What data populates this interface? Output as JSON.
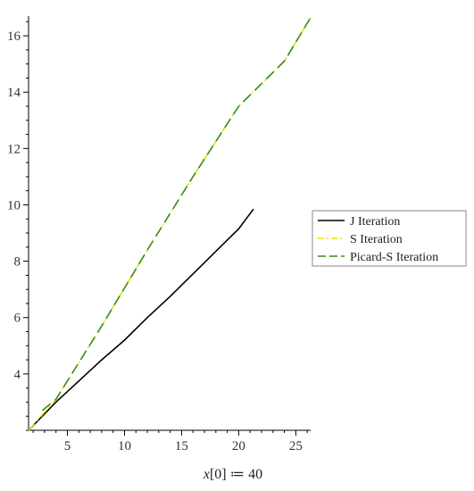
{
  "chart_data": {
    "type": "line",
    "title": "",
    "xlabel": "x[0] ≔ 40",
    "xlabel_parts": {
      "var": "x",
      "rest": "[0] ≔ 40"
    },
    "ylabel": "",
    "xlim": [
      1.6,
      26.3
    ],
    "ylim": [
      2.0,
      16.7
    ],
    "x_ticks": [
      5,
      10,
      15,
      20,
      25
    ],
    "y_ticks": [
      4,
      6,
      8,
      10,
      12,
      14,
      16
    ],
    "x_tick_labels": [
      "5",
      "10",
      "15",
      "20",
      "25"
    ],
    "y_tick_labels": [
      "4",
      "6",
      "8",
      "10",
      "12",
      "14",
      "16"
    ],
    "grid": false,
    "legend_position": "right",
    "series": [
      {
        "name": "J Iteration",
        "color": "#000000",
        "style": "solid",
        "x": [
          1.6,
          4,
          6,
          8,
          10,
          12,
          14,
          16,
          18,
          20,
          21.3
        ],
        "y": [
          2.0,
          3.0,
          3.75,
          4.5,
          5.2,
          6.0,
          6.75,
          7.55,
          8.35,
          9.15,
          9.85
        ]
      },
      {
        "name": "S Iteration",
        "color": "#e8e000",
        "style": "dashdot",
        "x": [
          1.6,
          4,
          8,
          12,
          16,
          20,
          24,
          26.3
        ],
        "y": [
          2.0,
          3.1,
          5.7,
          8.4,
          11.0,
          13.5,
          15.1,
          16.65
        ]
      },
      {
        "name": "Picard-S Iteration",
        "color": "#3a8a1e",
        "style": "dashed",
        "x": [
          2.8,
          4,
          8,
          12,
          16,
          20,
          24,
          26.3
        ],
        "y": [
          2.7,
          3.1,
          5.7,
          8.4,
          11.0,
          13.5,
          15.1,
          16.65
        ]
      }
    ]
  }
}
